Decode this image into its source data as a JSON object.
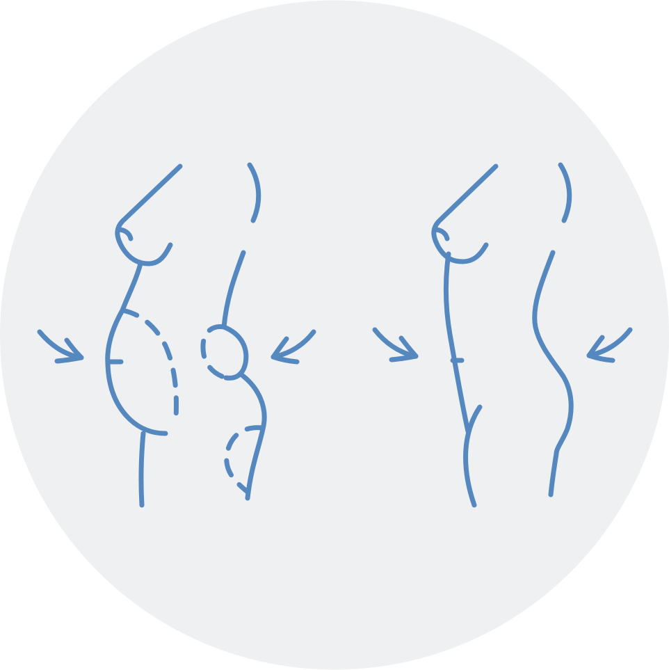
{
  "colors": {
    "background_circle": "#eff0f2",
    "line": "#5588bf"
  },
  "illustration": {
    "subject": "body-contour-before-after",
    "before": {
      "icons": [
        "torso-profile-icon",
        "back-profile-icon",
        "arrow-icon",
        "arrow-icon"
      ]
    },
    "after": {
      "icons": [
        "torso-profile-icon",
        "back-profile-icon",
        "arrow-icon",
        "arrow-icon"
      ]
    }
  }
}
